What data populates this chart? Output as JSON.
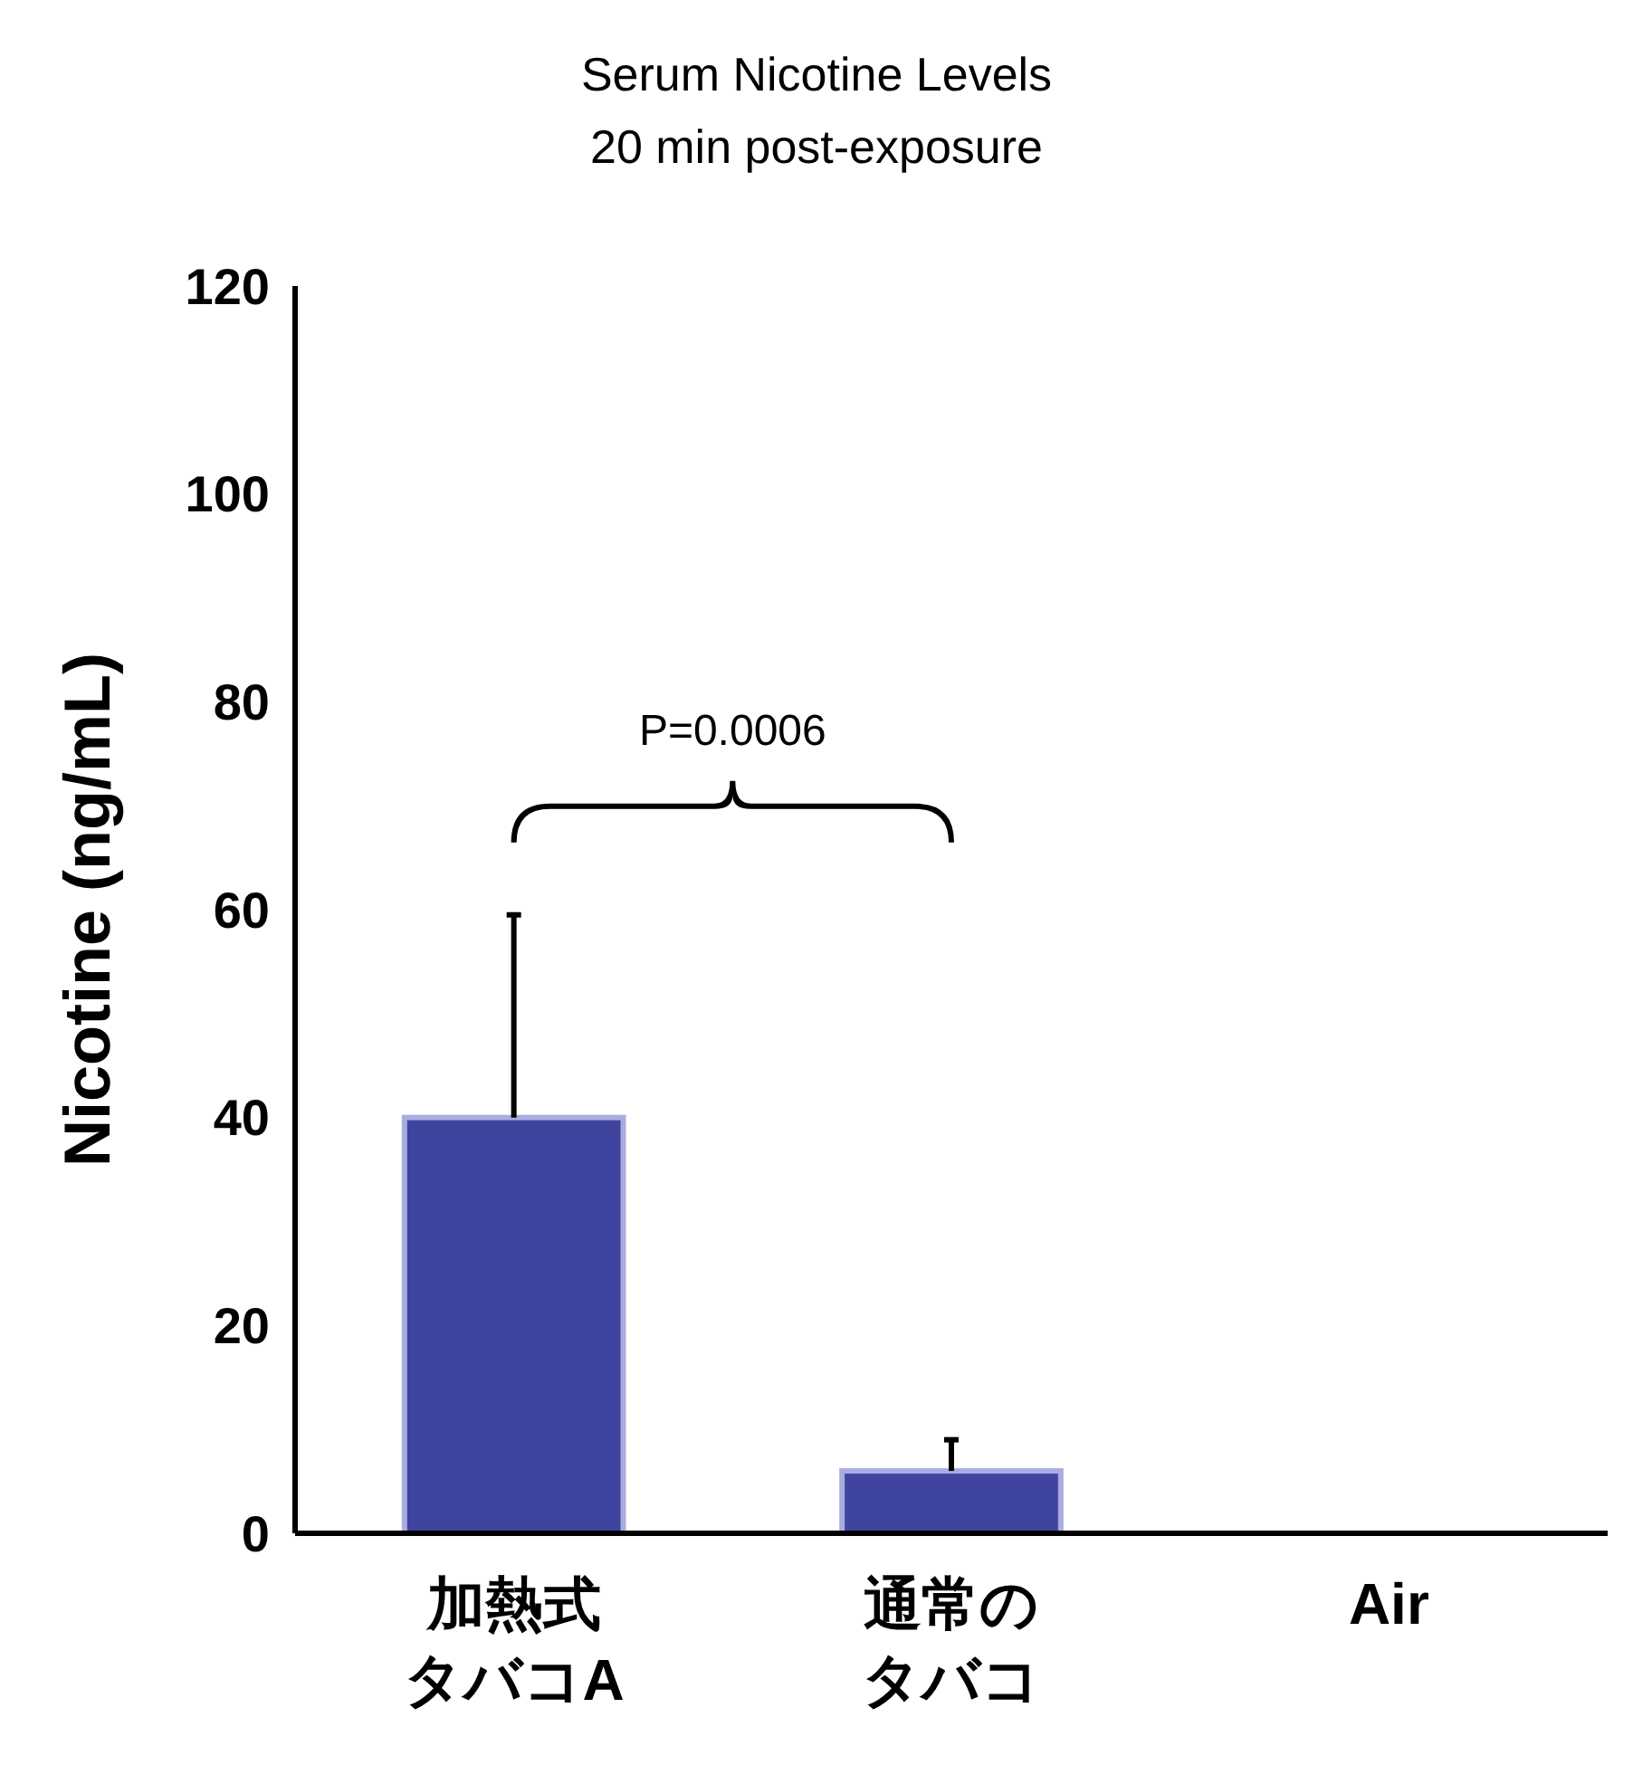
{
  "chart_data": {
    "type": "bar",
    "title": "Serum Nicotine Levels",
    "subtitle": "20 min post-exposure",
    "ylabel": "Nicotine (ng/mL)",
    "categories": [
      "加熱式タバコA",
      "通常のタバコ",
      "Air"
    ],
    "values": [
      40,
      6,
      0
    ],
    "errors": [
      [
        40,
        59.5
      ],
      [
        6,
        9
      ],
      null
    ],
    "color": "#3f449e",
    "ylim": [
      0,
      120
    ],
    "yticks": [
      0,
      20,
      40,
      60,
      80,
      100,
      120
    ],
    "grid": false,
    "annotations": [
      "P=0.0006"
    ]
  }
}
